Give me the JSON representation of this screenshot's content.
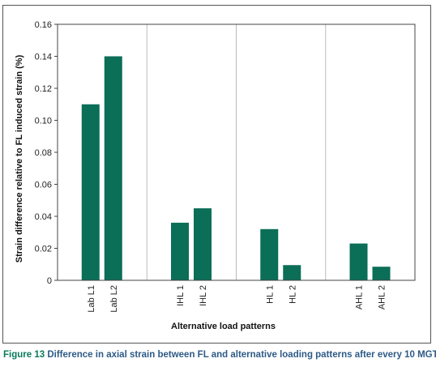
{
  "chart_data": {
    "type": "bar",
    "categories": [
      "Lab L1",
      "Lab L2",
      "IHL 1",
      "IHL 2",
      "HL 1",
      "HL 2",
      "AHL 1",
      "AHL 2"
    ],
    "groups": [
      [
        "Lab L1",
        "Lab L2"
      ],
      [
        "IHL 1",
        "IHL 2"
      ],
      [
        "HL 1",
        "HL 2"
      ],
      [
        "AHL 1",
        "AHL 2"
      ]
    ],
    "values": [
      0.11,
      0.14,
      0.036,
      0.045,
      0.032,
      0.0095,
      0.023,
      0.0085
    ],
    "xlabel": "Alternative load patterns",
    "ylabel": "Strain difference relative to FL induced strain (%)",
    "ylim": [
      0,
      0.16
    ],
    "yticks": [
      "0",
      "0.02",
      "0.04",
      "0.06",
      "0.08",
      "0.10",
      "0.12",
      "0.14",
      "0.16"
    ],
    "grid": "vertical group separators",
    "bar_color": "#0b6e57"
  },
  "caption": {
    "label": "Figure 13",
    "text": " Difference in axial strain between FL and alternative loading patterns after every 10 MGT"
  }
}
